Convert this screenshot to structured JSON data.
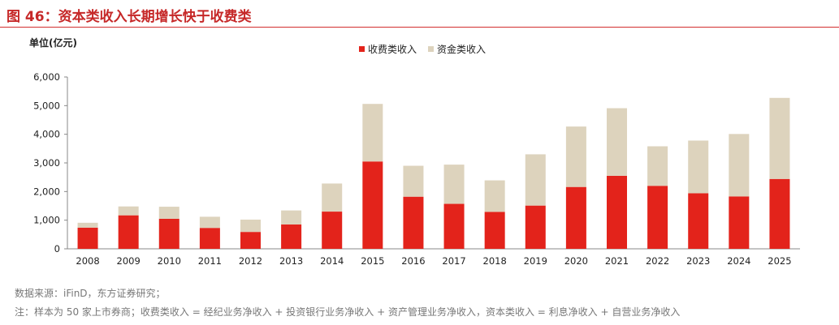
{
  "header": {
    "title": "图 46：资本类收入长期增长快于收费类"
  },
  "footer": {
    "source": "数据来源：iFinD，东方证券研究；",
    "note": "注：样本为 50 家上市券商；收费类收入 = 经纪业务净收入 + 投资银行业务净收入 + 资产管理业务净收入，资本类收入 = 利息净收入 + 自营业务净收入"
  },
  "chart_data": {
    "type": "bar",
    "stacked": true,
    "ylabel": "单位(亿元)",
    "ylim": [
      0,
      6000
    ],
    "yticks": [
      0,
      1000,
      2000,
      3000,
      4000,
      5000,
      6000
    ],
    "ytick_labels": [
      "0",
      "1,000",
      "2,000",
      "3,000",
      "4,000",
      "5,000",
      "6,000"
    ],
    "categories": [
      "2008",
      "2009",
      "2010",
      "2011",
      "2012",
      "2013",
      "2014",
      "2015",
      "2016",
      "2017",
      "2018",
      "2019",
      "2020",
      "2021",
      "2022",
      "2023",
      "2024",
      "2025"
    ],
    "legend_position": "top-center",
    "grid": false,
    "series": [
      {
        "name": "收费类收入",
        "color": "#e3231b",
        "values": [
          740,
          1170,
          1050,
          730,
          590,
          850,
          1300,
          3050,
          1820,
          1570,
          1290,
          1510,
          2160,
          2550,
          2200,
          1940,
          1830,
          2440
        ]
      },
      {
        "name": "资金类收入",
        "color": "#ddd3bd",
        "values": [
          170,
          310,
          420,
          390,
          430,
          490,
          980,
          2010,
          1080,
          1370,
          1100,
          1790,
          2110,
          2360,
          1380,
          1840,
          2180,
          2830
        ]
      }
    ]
  }
}
